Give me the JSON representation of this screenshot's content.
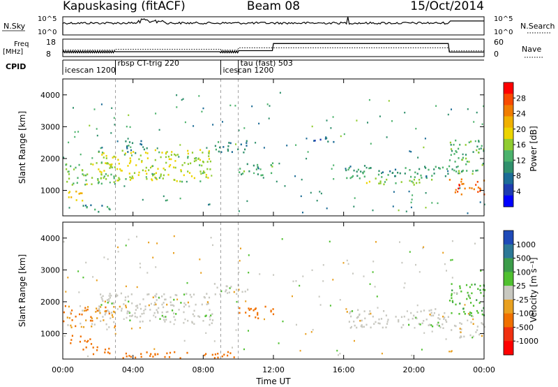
{
  "header": {
    "station": "Kapuskasing (fitACF)",
    "beam": "Beam 08",
    "date": "15/Oct/2014"
  },
  "aux": {
    "nsky_label": "N.Sky",
    "nsky_ticks": [
      "10^5",
      "10^0"
    ],
    "nsearch_label": "N.Search",
    "nsearch_ticks": [
      "10^5",
      "10^0"
    ],
    "freq_label": [
      "Freq",
      "[MHz]"
    ],
    "freq_ticks": [
      "18",
      "8"
    ],
    "nave_label": "Nave",
    "nave_ticks": [
      "60",
      "0"
    ],
    "cpid_label": "CPID",
    "cpid_segments": [
      {
        "name": "icescan 1200",
        "start_h": 0.0,
        "end_h": 3.0
      },
      {
        "name": "rbsp CT-trig 220",
        "start_h": 3.0,
        "end_h": 9.0
      },
      {
        "name": "icescan 1200",
        "start_h": 9.0,
        "end_h": 10.0
      },
      {
        "name": "tau (fast) 503",
        "start_h": 10.0,
        "end_h": 24.0
      }
    ]
  },
  "axes": {
    "ylabel": "Slant Range [km]",
    "xlabel": "Time UT",
    "yticks": [
      "1000",
      "2000",
      "3000",
      "4000"
    ],
    "xticks": [
      "00:00",
      "04:00",
      "08:00",
      "12:00",
      "16:00",
      "20:00",
      "00:00"
    ]
  },
  "colorbars": {
    "power": {
      "label": "Power [dB]",
      "ticks": [
        "28",
        "24",
        "20",
        "16",
        "12",
        "8",
        "4"
      ],
      "colors": [
        "#ff0000",
        "#f84a00",
        "#f07c00",
        "#f0b000",
        "#ecd400",
        "#90cc30",
        "#4cb26c",
        "#30906c",
        "#1c6c96",
        "#1e3cb0",
        "#0000ff"
      ]
    },
    "velocity": {
      "label": "Velocity [m s⁻¹]",
      "ticks": [
        "1000",
        "500",
        "100",
        "25",
        "-25",
        "-100",
        "-500",
        "-1000"
      ],
      "colors": [
        "#1e4ab8",
        "#2c7896",
        "#3c9c4a",
        "#50c030",
        "#c8c8c0",
        "#e8a020",
        "#f07000",
        "#f03010",
        "#ff0000"
      ]
    }
  },
  "chart_data": [
    {
      "type": "heatmap",
      "panel": "power",
      "x_unit": "hours UT",
      "y_unit": "km",
      "xlim": [
        0,
        24
      ],
      "ylim": [
        200,
        4500
      ],
      "regions": [
        {
          "t0": 0.0,
          "t1": 3.0,
          "r0": 1200,
          "r1": 1900,
          "val": 14
        },
        {
          "t0": 0.3,
          "t1": 1.6,
          "r0": 700,
          "r1": 1000,
          "val": 20
        },
        {
          "t0": 1.0,
          "t1": 2.8,
          "r0": 350,
          "r1": 600,
          "val": 9
        },
        {
          "t0": 2.0,
          "t1": 8.5,
          "r0": 1300,
          "r1": 2300,
          "val": 16
        },
        {
          "t0": 3.5,
          "t1": 5.0,
          "r0": 2200,
          "r1": 2600,
          "val": 8
        },
        {
          "t0": 8.5,
          "t1": 10.5,
          "r0": 2200,
          "r1": 2600,
          "val": 8
        },
        {
          "t0": 10.0,
          "t1": 12.0,
          "r0": 1500,
          "r1": 1900,
          "val": 12
        },
        {
          "t0": 14.0,
          "t1": 15.5,
          "r0": 2500,
          "r1": 2700,
          "val": 6
        },
        {
          "t0": 16.0,
          "t1": 22.0,
          "r0": 1400,
          "r1": 1800,
          "val": 10
        },
        {
          "t0": 17.0,
          "t1": 21.0,
          "r0": 1200,
          "r1": 1400,
          "val": 14
        },
        {
          "t0": 22.0,
          "t1": 24.0,
          "r0": 900,
          "r1": 1400,
          "val": 26
        },
        {
          "t0": 22.0,
          "t1": 24.0,
          "r0": 1500,
          "r1": 2600,
          "val": 12
        }
      ]
    },
    {
      "type": "heatmap",
      "panel": "velocity",
      "x_unit": "hours UT",
      "y_unit": "km",
      "xlim": [
        0,
        24
      ],
      "ylim": [
        200,
        4500
      ],
      "regions": [
        {
          "t0": 0.0,
          "t1": 3.0,
          "r0": 1200,
          "r1": 1900,
          "val": -50
        },
        {
          "t0": 0.3,
          "t1": 1.6,
          "r0": 700,
          "r1": 1000,
          "val": -200
        },
        {
          "t0": 1.0,
          "t1": 2.8,
          "r0": 350,
          "r1": 600,
          "val": -150
        },
        {
          "t0": 2.0,
          "t1": 8.5,
          "r0": 1300,
          "r1": 2300,
          "val": 0
        },
        {
          "t0": 8.5,
          "t1": 10.5,
          "r0": 2200,
          "r1": 2600,
          "val": 0
        },
        {
          "t0": 10.0,
          "t1": 12.0,
          "r0": 1500,
          "r1": 1900,
          "val": -150
        },
        {
          "t0": 16.0,
          "t1": 22.0,
          "r0": 1200,
          "r1": 1800,
          "val": 0
        },
        {
          "t0": 22.0,
          "t1": 24.0,
          "r0": 900,
          "r1": 1400,
          "val": 0
        },
        {
          "t0": 22.0,
          "t1": 24.0,
          "r0": 1500,
          "r1": 2600,
          "val": 50
        },
        {
          "t0": 3.0,
          "t1": 10.0,
          "r0": 250,
          "r1": 450,
          "val": -150
        }
      ]
    }
  ]
}
